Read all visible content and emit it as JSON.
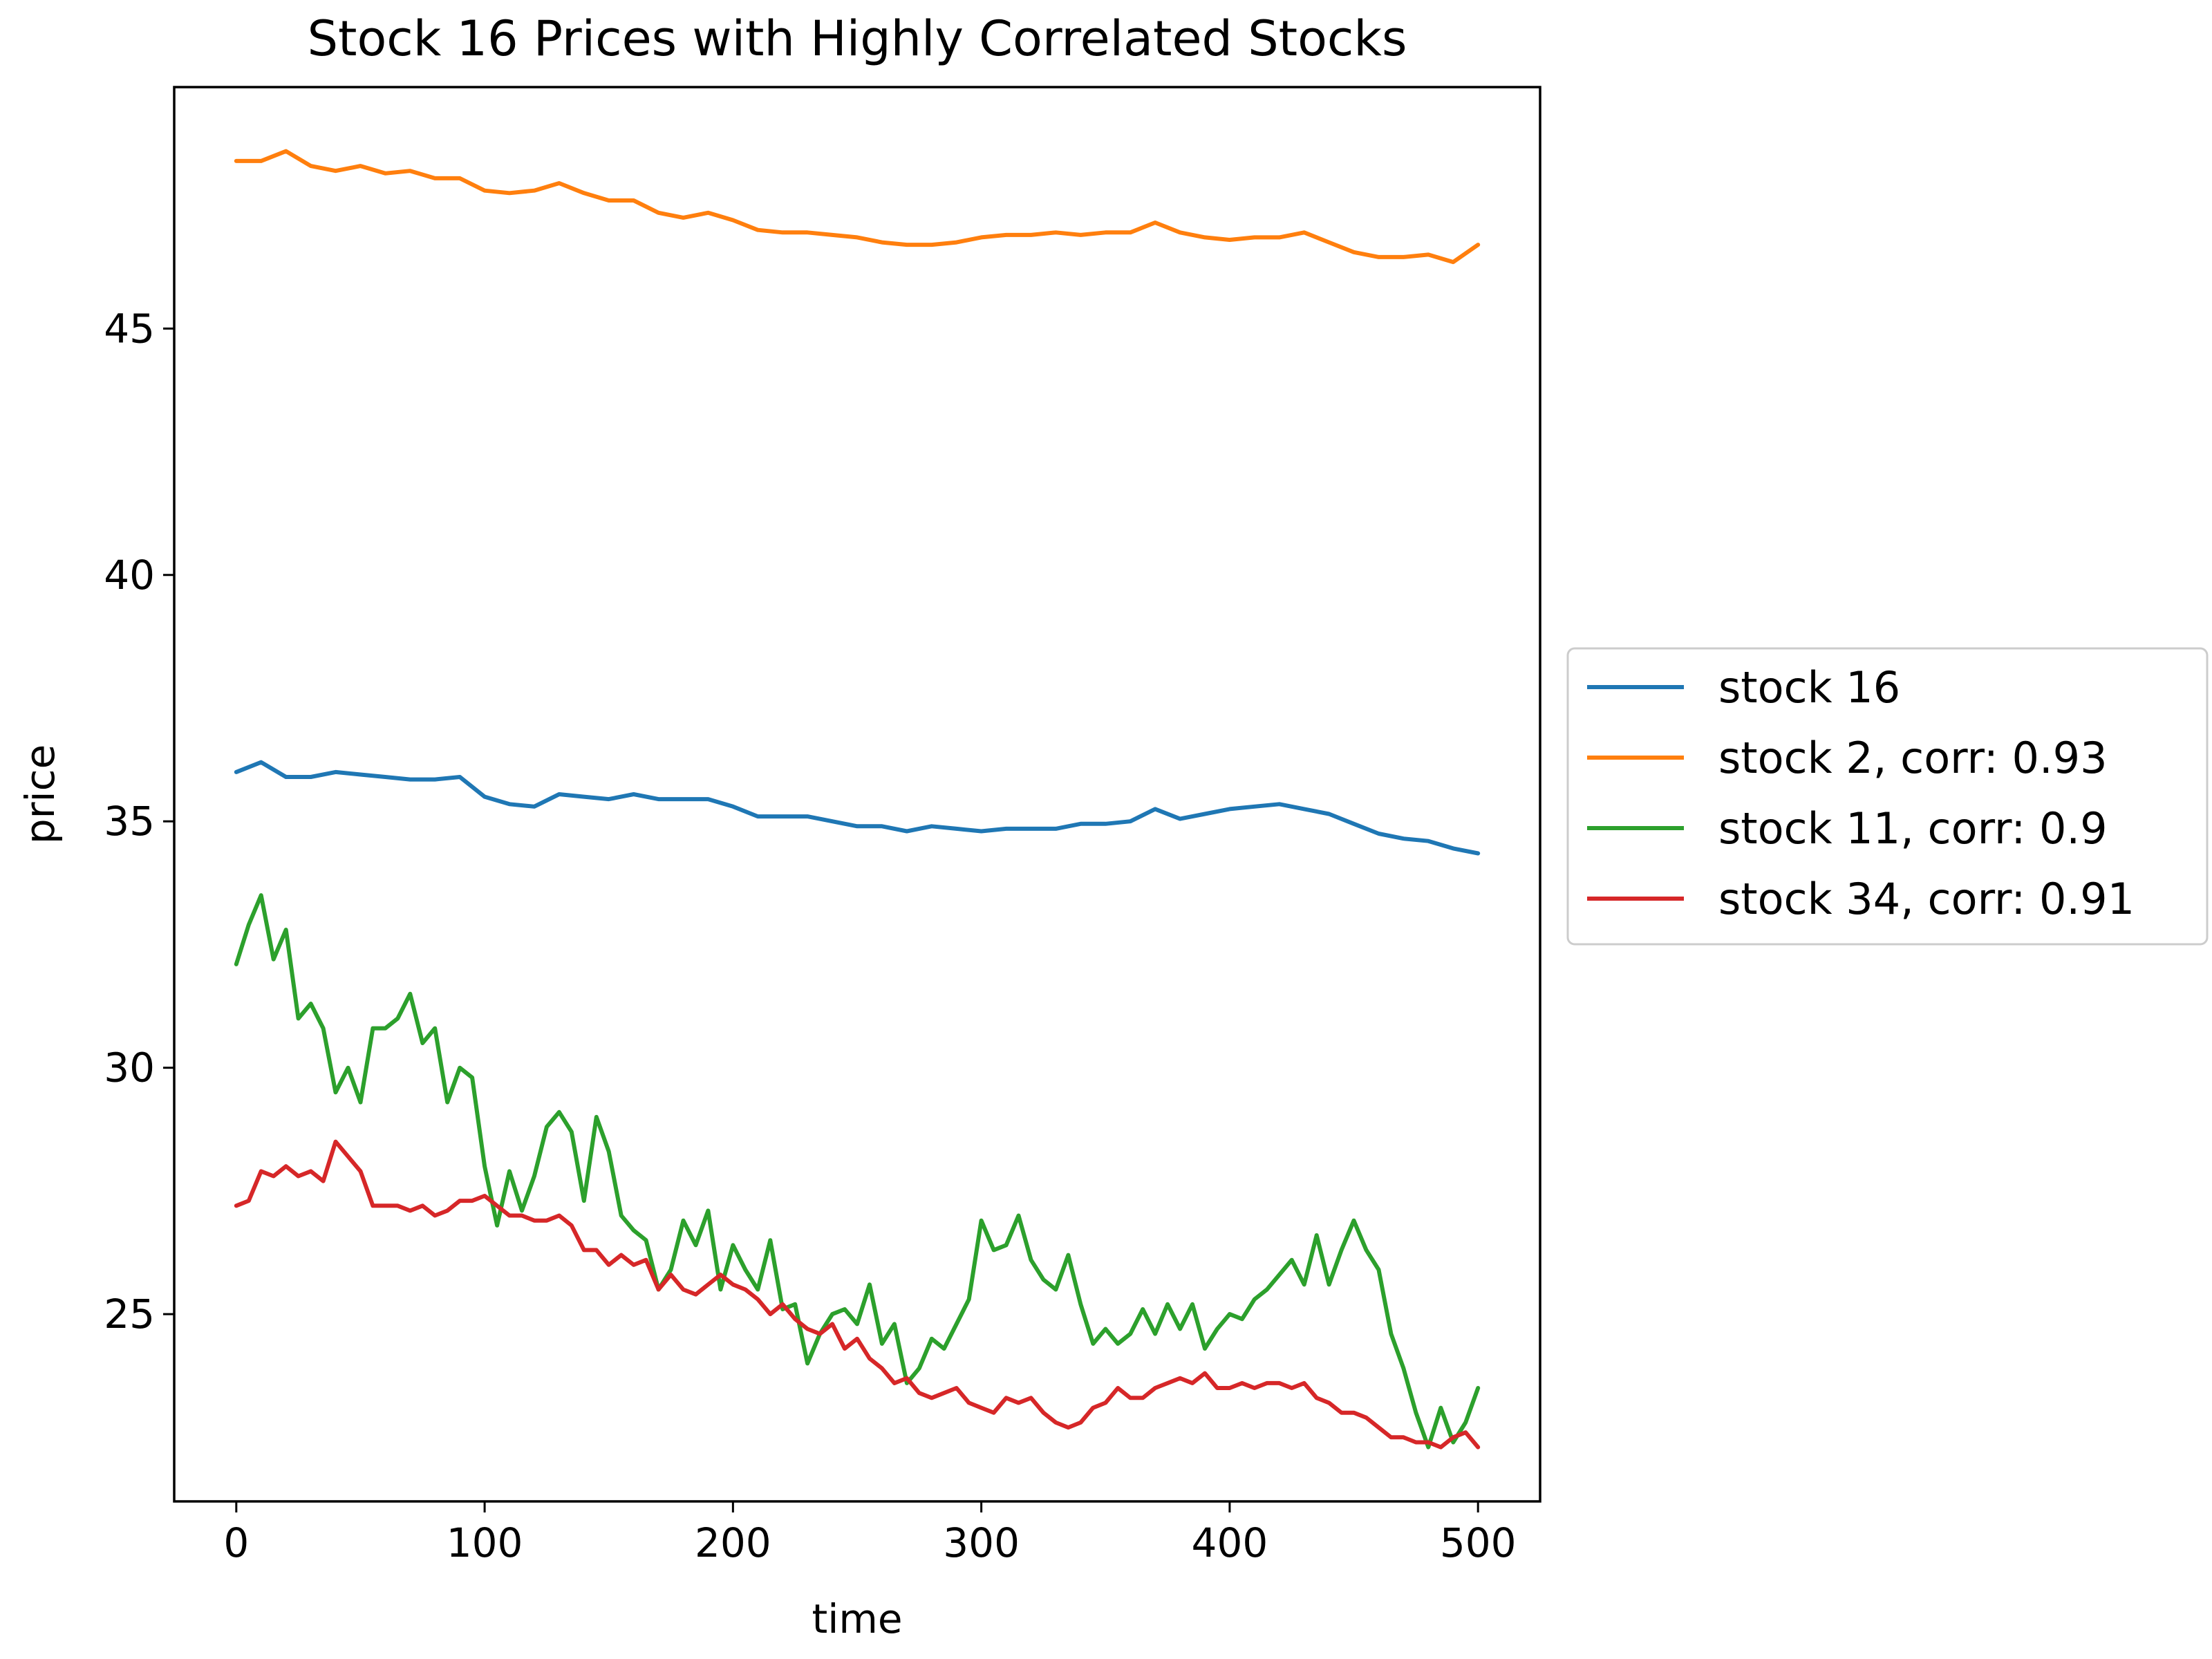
{
  "chart_data": {
    "type": "line",
    "title": "Stock 16 Prices with Highly Correlated Stocks",
    "xlabel": "time",
    "ylabel": "price",
    "xlim": [
      -25,
      525
    ],
    "ylim": [
      21.2,
      49.9
    ],
    "xticks": [
      0,
      100,
      200,
      300,
      400,
      500
    ],
    "yticks": [
      25,
      30,
      35,
      40,
      45
    ],
    "legend_position": "outside right, center",
    "grid": false,
    "series": [
      {
        "name": "stock 16",
        "color": "#1f77b4",
        "x": [
          0,
          10,
          20,
          30,
          40,
          50,
          60,
          70,
          80,
          90,
          100,
          110,
          120,
          130,
          140,
          150,
          160,
          170,
          180,
          190,
          200,
          210,
          220,
          230,
          240,
          250,
          260,
          270,
          280,
          290,
          300,
          310,
          320,
          330,
          340,
          350,
          360,
          370,
          380,
          390,
          400,
          410,
          420,
          430,
          440,
          450,
          460,
          470,
          480,
          490,
          500
        ],
        "values": [
          36.0,
          36.2,
          35.9,
          35.9,
          36.0,
          35.95,
          35.9,
          35.85,
          35.85,
          35.9,
          35.5,
          35.35,
          35.3,
          35.55,
          35.5,
          35.45,
          35.55,
          35.45,
          35.45,
          35.45,
          35.3,
          35.1,
          35.1,
          35.1,
          35.0,
          34.9,
          34.9,
          34.8,
          34.9,
          34.85,
          34.8,
          34.85,
          34.85,
          34.85,
          34.95,
          34.95,
          35.0,
          35.25,
          35.05,
          35.15,
          35.25,
          35.3,
          35.35,
          35.25,
          35.15,
          34.95,
          34.75,
          34.65,
          34.6,
          34.45,
          34.35
        ]
      },
      {
        "name": "stock 2, corr: 0.93",
        "color": "#ff7f0e",
        "x": [
          0,
          10,
          20,
          30,
          40,
          50,
          60,
          70,
          80,
          90,
          100,
          110,
          120,
          130,
          140,
          150,
          160,
          170,
          180,
          190,
          200,
          210,
          220,
          230,
          240,
          250,
          260,
          270,
          280,
          290,
          300,
          310,
          320,
          330,
          340,
          350,
          360,
          370,
          380,
          390,
          400,
          410,
          420,
          430,
          440,
          450,
          460,
          470,
          480,
          490,
          500
        ],
        "values": [
          48.4,
          48.4,
          48.6,
          48.3,
          48.2,
          48.3,
          48.15,
          48.2,
          48.05,
          48.05,
          47.8,
          47.75,
          47.8,
          47.95,
          47.75,
          47.6,
          47.6,
          47.35,
          47.25,
          47.35,
          47.2,
          47.0,
          46.95,
          46.95,
          46.9,
          46.85,
          46.75,
          46.7,
          46.7,
          46.75,
          46.85,
          46.9,
          46.9,
          46.95,
          46.9,
          46.95,
          46.95,
          47.15,
          46.95,
          46.85,
          46.8,
          46.85,
          46.85,
          46.95,
          46.75,
          46.55,
          46.45,
          46.45,
          46.5,
          46.35,
          46.7
        ]
      },
      {
        "name": "stock 11, corr: 0.9",
        "color": "#2ca02c",
        "x": [
          0,
          5,
          10,
          15,
          20,
          25,
          30,
          35,
          40,
          45,
          50,
          55,
          60,
          65,
          70,
          75,
          80,
          85,
          90,
          95,
          100,
          105,
          110,
          115,
          120,
          125,
          130,
          135,
          140,
          145,
          150,
          155,
          160,
          165,
          170,
          175,
          180,
          185,
          190,
          195,
          200,
          205,
          210,
          215,
          220,
          225,
          230,
          235,
          240,
          245,
          250,
          255,
          260,
          265,
          270,
          275,
          280,
          285,
          290,
          295,
          300,
          305,
          310,
          315,
          320,
          325,
          330,
          335,
          340,
          345,
          350,
          355,
          360,
          365,
          370,
          375,
          380,
          385,
          390,
          395,
          400,
          405,
          410,
          415,
          420,
          425,
          430,
          435,
          440,
          445,
          450,
          455,
          460,
          465,
          470,
          475,
          480,
          485,
          490,
          495,
          500
        ],
        "values": [
          32.1,
          32.9,
          33.5,
          32.2,
          32.8,
          31.0,
          31.3,
          30.8,
          29.5,
          30.0,
          29.3,
          30.8,
          30.8,
          31.0,
          31.5,
          30.5,
          30.8,
          29.3,
          30.0,
          29.8,
          28.0,
          26.8,
          27.9,
          27.1,
          27.8,
          28.8,
          29.1,
          28.7,
          27.3,
          29.0,
          28.3,
          27.0,
          26.7,
          26.5,
          25.5,
          25.9,
          26.9,
          26.4,
          27.1,
          25.5,
          26.4,
          25.9,
          25.5,
          26.5,
          25.1,
          25.2,
          24.0,
          24.6,
          25.0,
          25.1,
          24.8,
          25.6,
          24.4,
          24.8,
          23.6,
          23.9,
          24.5,
          24.3,
          24.8,
          25.3,
          26.9,
          26.3,
          26.4,
          27.0,
          26.1,
          25.7,
          25.5,
          26.2,
          25.2,
          24.4,
          24.7,
          24.4,
          24.6,
          25.1,
          24.6,
          25.2,
          24.7,
          25.2,
          24.3,
          24.7,
          25.0,
          24.9,
          25.3,
          25.5,
          25.8,
          26.1,
          25.6,
          26.6,
          25.6,
          26.3,
          26.9,
          26.3,
          25.9,
          24.6,
          23.9,
          23.0,
          22.3,
          23.1,
          22.4,
          22.8,
          23.5
        ]
      },
      {
        "name": "stock 34, corr: 0.91",
        "color": "#d62728",
        "x": [
          0,
          5,
          10,
          15,
          20,
          25,
          30,
          35,
          40,
          45,
          50,
          55,
          60,
          65,
          70,
          75,
          80,
          85,
          90,
          95,
          100,
          105,
          110,
          115,
          120,
          125,
          130,
          135,
          140,
          145,
          150,
          155,
          160,
          165,
          170,
          175,
          180,
          185,
          190,
          195,
          200,
          205,
          210,
          215,
          220,
          225,
          230,
          235,
          240,
          245,
          250,
          255,
          260,
          265,
          270,
          275,
          280,
          285,
          290,
          295,
          300,
          305,
          310,
          315,
          320,
          325,
          330,
          335,
          340,
          345,
          350,
          355,
          360,
          365,
          370,
          375,
          380,
          385,
          390,
          395,
          400,
          405,
          410,
          415,
          420,
          425,
          430,
          435,
          440,
          445,
          450,
          455,
          460,
          465,
          470,
          475,
          480,
          485,
          490,
          495,
          500
        ],
        "values": [
          27.2,
          27.3,
          27.9,
          27.8,
          28.0,
          27.8,
          27.9,
          27.7,
          28.5,
          28.2,
          27.9,
          27.2,
          27.2,
          27.2,
          27.1,
          27.2,
          27.0,
          27.1,
          27.3,
          27.3,
          27.4,
          27.2,
          27.0,
          27.0,
          26.9,
          26.9,
          27.0,
          26.8,
          26.3,
          26.3,
          26.0,
          26.2,
          26.0,
          26.1,
          25.5,
          25.8,
          25.5,
          25.4,
          25.6,
          25.8,
          25.6,
          25.5,
          25.3,
          25.0,
          25.2,
          24.9,
          24.7,
          24.6,
          24.8,
          24.3,
          24.5,
          24.1,
          23.9,
          23.6,
          23.7,
          23.4,
          23.3,
          23.4,
          23.5,
          23.2,
          23.1,
          23.0,
          23.3,
          23.2,
          23.3,
          23.0,
          22.8,
          22.7,
          22.8,
          23.1,
          23.2,
          23.5,
          23.3,
          23.3,
          23.5,
          23.6,
          23.7,
          23.6,
          23.8,
          23.5,
          23.5,
          23.6,
          23.5,
          23.6,
          23.6,
          23.5,
          23.6,
          23.3,
          23.2,
          23.0,
          23.0,
          22.9,
          22.7,
          22.5,
          22.5,
          22.4,
          22.4,
          22.3,
          22.5,
          22.6,
          22.3
        ]
      }
    ]
  }
}
